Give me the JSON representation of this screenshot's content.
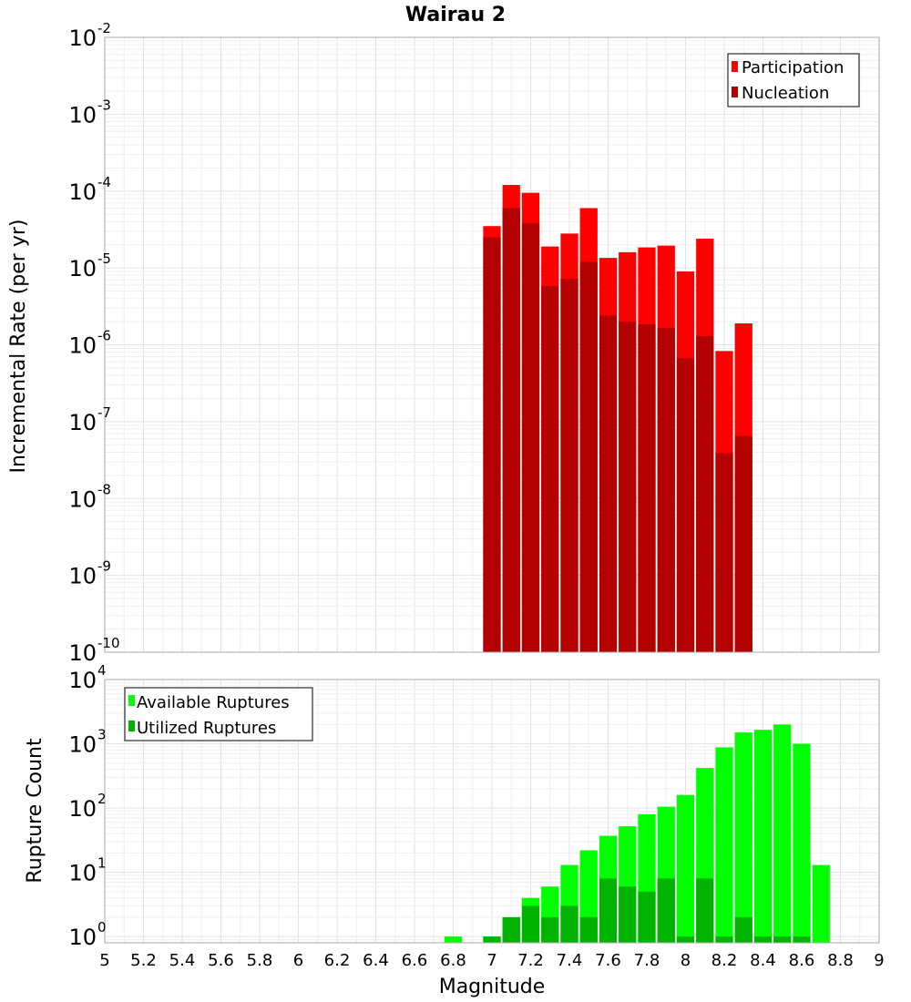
{
  "title": "Wairau 2",
  "xlabel": "Magnitude",
  "xticks": [
    "5",
    "5.2",
    "5.4",
    "5.6",
    "5.8",
    "6",
    "6.2",
    "6.4",
    "6.6",
    "6.8",
    "7",
    "7.2",
    "7.4",
    "7.6",
    "7.8",
    "8",
    "8.2",
    "8.4",
    "8.6",
    "8.8",
    "9"
  ],
  "chart_data": [
    {
      "type": "bar",
      "panel": "top",
      "ylabel": "Incremental Rate (per yr)",
      "yscale": "log",
      "ylim": [
        1e-10,
        0.01
      ],
      "xlim": [
        5,
        9
      ],
      "bin_width": 0.1,
      "ytick_labels": [
        {
          "base": "10",
          "exp": "-2"
        },
        {
          "base": "10",
          "exp": "-3"
        },
        {
          "base": "10",
          "exp": "-4"
        },
        {
          "base": "10",
          "exp": "-5"
        },
        {
          "base": "10",
          "exp": "-6"
        },
        {
          "base": "10",
          "exp": "-7"
        },
        {
          "base": "10",
          "exp": "-8"
        },
        {
          "base": "10",
          "exp": "-9"
        },
        {
          "base": "10",
          "exp": "-10"
        }
      ],
      "legend": [
        "Participation",
        "Nucleation"
      ],
      "legend_position": "top-right",
      "x": [
        7.0,
        7.1,
        7.2,
        7.3,
        7.4,
        7.5,
        7.6,
        7.7,
        7.8,
        7.9,
        8.0,
        8.1,
        8.2,
        8.3
      ],
      "series": [
        {
          "name": "Participation",
          "color": "#ff0000",
          "values": [
            3.5e-05,
            0.00012,
            9.5e-05,
            1.9e-05,
            2.8e-05,
            6e-05,
            1.35e-05,
            1.6e-05,
            1.85e-05,
            1.95e-05,
            9e-06,
            2.4e-05,
            8.3e-07,
            1.9e-06
          ]
        },
        {
          "name": "Nucleation",
          "color": "#b30000",
          "values": [
            2.5e-05,
            6e-05,
            3.8e-05,
            5.8e-06,
            7.2e-06,
            1.2e-05,
            2.4e-06,
            2e-06,
            1.85e-06,
            1.65e-06,
            6.7e-07,
            1.3e-06,
            3.9e-08,
            6.5e-08
          ]
        }
      ]
    },
    {
      "type": "bar",
      "panel": "bottom",
      "ylabel": "Rupture Count",
      "yscale": "log",
      "ylim": [
        0.8,
        10000.0
      ],
      "xlim": [
        5,
        9
      ],
      "bin_width": 0.1,
      "ytick_labels": [
        {
          "base": "10",
          "exp": "4"
        },
        {
          "base": "10",
          "exp": "3"
        },
        {
          "base": "10",
          "exp": "2"
        },
        {
          "base": "10",
          "exp": "1"
        },
        {
          "base": "10",
          "exp": "0"
        }
      ],
      "legend": [
        "Available Ruptures",
        "Utilized Ruptures"
      ],
      "legend_position": "top-left",
      "x": [
        6.8,
        7.0,
        7.1,
        7.2,
        7.3,
        7.4,
        7.5,
        7.6,
        7.7,
        7.8,
        7.9,
        8.0,
        8.1,
        8.2,
        8.3,
        8.4,
        8.5,
        8.6,
        8.7
      ],
      "series": [
        {
          "name": "Available Ruptures",
          "color": "#00ff00",
          "values": [
            1,
            1,
            2,
            4,
            6,
            13,
            22,
            37,
            52,
            80,
            105,
            160,
            420,
            880,
            1500,
            1650,
            2000,
            1000,
            13
          ]
        },
        {
          "name": "Utilized Ruptures",
          "color": "#00b300",
          "values": [
            null,
            1,
            2,
            3,
            2,
            3,
            2,
            8,
            6,
            5,
            8,
            1,
            8,
            1,
            2,
            1,
            1,
            1,
            null
          ]
        }
      ]
    }
  ]
}
